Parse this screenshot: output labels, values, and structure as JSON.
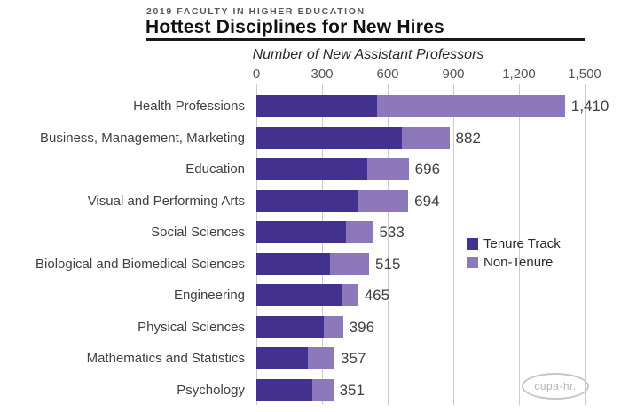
{
  "header": {
    "kicker": "2019 FACULTY IN HIGHER EDUCATION",
    "title": "Hottest Disciplines for New Hires"
  },
  "chart_data": {
    "type": "bar",
    "orientation": "horizontal",
    "stacked": true,
    "axis_title": "Number of New Assistant Professors",
    "xlim": [
      0,
      1500
    ],
    "x_tick_values": [
      0,
      300,
      600,
      900,
      1200,
      1500
    ],
    "x_tick_labels": [
      "0",
      "300",
      "600",
      "900",
      "1,200",
      "1,500"
    ],
    "grid": true,
    "categories": [
      "Health Professions",
      "Business, Management, Marketing",
      "Education",
      "Visual and Performing Arts",
      "Social Sciences",
      "Biological and Biomedical Sciences",
      "Engineering",
      "Physical Sciences",
      "Mathematics and Statistics",
      "Psychology"
    ],
    "series": [
      {
        "name": "Tenure Track",
        "color": "#43318F",
        "values": [
          550,
          665,
          505,
          465,
          410,
          337,
          392,
          307,
          235,
          256
        ]
      },
      {
        "name": "Non-Tenure",
        "color": "#8C78BA",
        "values": [
          860,
          217,
          191,
          229,
          123,
          178,
          73,
          89,
          122,
          95
        ]
      }
    ],
    "totals": [
      1410,
      882,
      696,
      694,
      533,
      515,
      465,
      396,
      357,
      351
    ],
    "total_labels": [
      "1,410",
      "882",
      "696",
      "694",
      "533",
      "515",
      "465",
      "396",
      "357",
      "351"
    ],
    "legend": [
      {
        "label": "Tenure Track",
        "color": "#43318F"
      },
      {
        "label": "Non-Tenure",
        "color": "#8C78BA"
      }
    ],
    "legend_position": "right-middle"
  },
  "logo": {
    "text": "cupa-hr."
  }
}
